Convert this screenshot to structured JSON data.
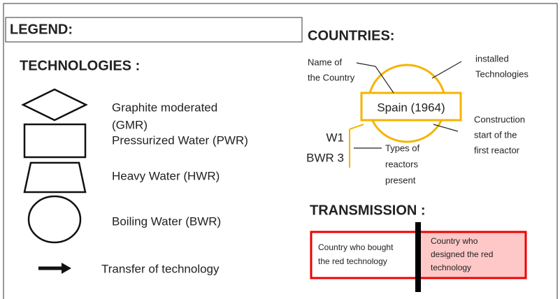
{
  "legend": {
    "title": "LEGEND:"
  },
  "technologies": {
    "title": "TECHNOLOGIES :",
    "items": [
      {
        "lines": [
          "Graphite moderated",
          "(GMR)"
        ]
      },
      {
        "lines": [
          "Pressurized Water (PWR)"
        ]
      },
      {
        "lines": [
          "Heavy Water (HWR)"
        ]
      },
      {
        "lines": [
          "Boiling Water (BWR)"
        ]
      },
      {
        "lines": [
          "Transfer of technology"
        ]
      }
    ]
  },
  "countries": {
    "title": "COUNTRIES:",
    "example": "Spain (1964)",
    "reactors": [
      "W1",
      "BWR 3"
    ],
    "notes": {
      "name": [
        "Name of",
        "the Country"
      ],
      "installed": [
        "installed",
        "Technologies"
      ],
      "construction": [
        "Construction",
        "start of the",
        "first reactor"
      ],
      "types": [
        "Types of",
        "reactors",
        "present"
      ]
    }
  },
  "transmission": {
    "title": "TRANSMISSION :",
    "buyer": [
      "Country who bought",
      "the red technology"
    ],
    "designer": [
      "Country who",
      "designed the red",
      "technology"
    ]
  }
}
